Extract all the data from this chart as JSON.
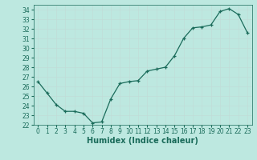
{
  "x": [
    0,
    1,
    2,
    3,
    4,
    5,
    6,
    7,
    8,
    9,
    10,
    11,
    12,
    13,
    14,
    15,
    16,
    17,
    18,
    19,
    20,
    21,
    22,
    23
  ],
  "y": [
    26.5,
    25.3,
    24.1,
    23.4,
    23.4,
    23.2,
    22.2,
    22.3,
    24.7,
    26.3,
    26.5,
    26.6,
    27.6,
    27.8,
    28.0,
    29.2,
    31.0,
    32.1,
    32.2,
    32.4,
    33.8,
    34.1,
    33.5,
    31.6
  ],
  "xlabel": "Humidex (Indice chaleur)",
  "ylim": [
    22,
    34.5
  ],
  "xlim": [
    -0.5,
    23.5
  ],
  "xticks": [
    0,
    1,
    2,
    3,
    4,
    5,
    6,
    7,
    8,
    9,
    10,
    11,
    12,
    13,
    14,
    15,
    16,
    17,
    18,
    19,
    20,
    21,
    22,
    23
  ],
  "yticks": [
    22,
    23,
    24,
    25,
    26,
    27,
    28,
    29,
    30,
    31,
    32,
    33,
    34
  ],
  "line_color": "#1a6b5a",
  "marker": "+",
  "bg_color": "#bde8e0",
  "grid_color": "#c0ddd8",
  "figure_bg": "#bde8e0",
  "tick_color": "#1a6b5a",
  "label_fontsize": 7,
  "tick_fontsize": 5.5
}
